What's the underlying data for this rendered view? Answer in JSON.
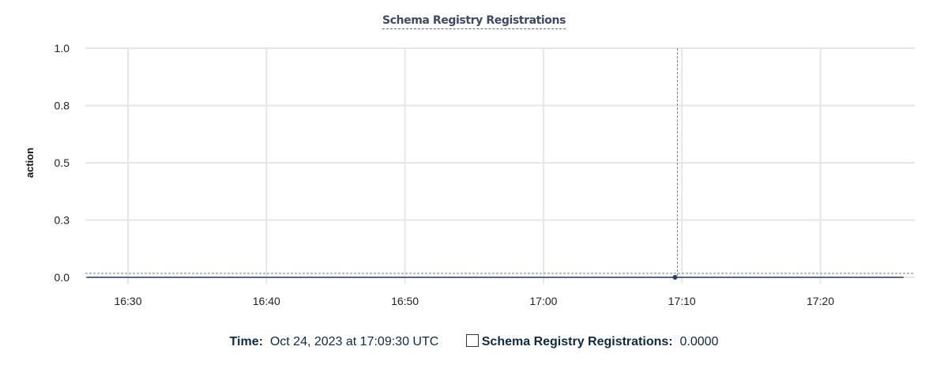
{
  "chart_data": {
    "type": "line",
    "title": "Schema Registry Registrations",
    "ylabel": "action",
    "xlabel": "",
    "ylim": [
      0,
      1
    ],
    "y_ticks": [
      "0.0",
      "0.3",
      "0.5",
      "0.8",
      "1.0"
    ],
    "y_tick_values": [
      0,
      0.25,
      0.5,
      0.75,
      1.0
    ],
    "x_ticks": [
      "16:30",
      "16:40",
      "16:50",
      "17:00",
      "17:10",
      "17:20"
    ],
    "xlim": [
      "16:27",
      "17:26"
    ],
    "grid": true,
    "series": [
      {
        "name": "Schema Registry Registrations",
        "x": [
          "16:27",
          "17:09:30",
          "17:26"
        ],
        "values": [
          0,
          0,
          0
        ],
        "color": "#2c3e5c"
      }
    ],
    "hover_point": {
      "x": "17:09:30",
      "value": 0
    }
  },
  "legend": {
    "time_label": "Time:",
    "time_value": "Oct 24, 2023 at 17:09:30 UTC",
    "series_label": "Schema Registry Registrations:",
    "series_value": "0.0000"
  }
}
